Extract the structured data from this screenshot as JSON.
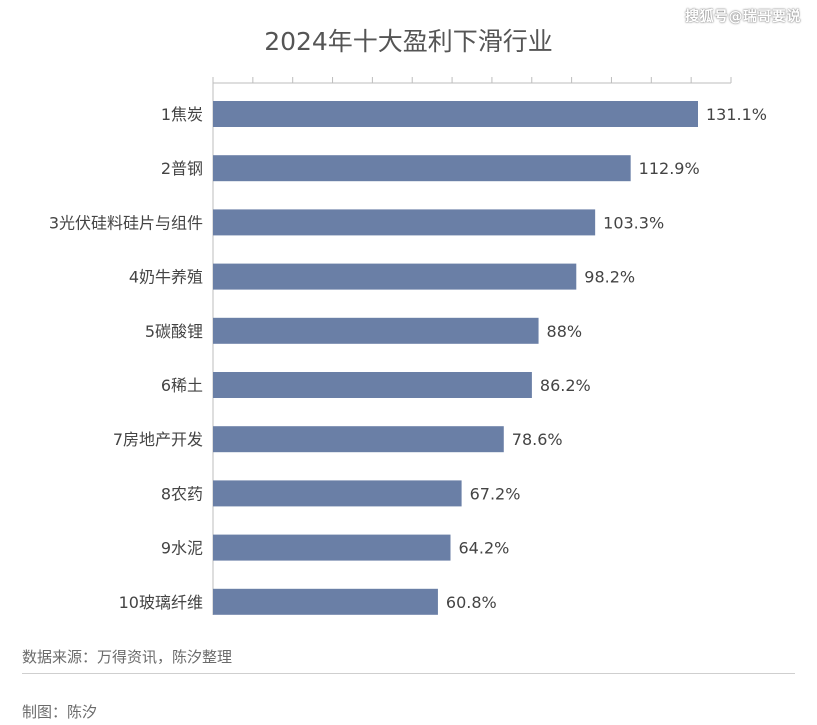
{
  "watermark": "搜狐号@瑞哥要说",
  "chart_data": {
    "type": "bar",
    "orientation": "horizontal",
    "title": "2024年十大盈利下滑行业",
    "categories": [
      "1焦炭",
      "2普钢",
      "3光伏硅料硅片与组件",
      "4奶牛养殖",
      "5碳酸锂",
      "6稀土",
      "7房地产开发",
      "8农药",
      "9水泥",
      "10玻璃纤维"
    ],
    "values": [
      131.1,
      112.9,
      103.3,
      98.2,
      88,
      86.2,
      78.6,
      67.2,
      64.2,
      60.8
    ],
    "labels": [
      "131.1%",
      "112.9%",
      "103.3%",
      "98.2%",
      "88%",
      "86.2%",
      "78.6%",
      "67.2%",
      "64.2%",
      "60.8%"
    ],
    "xlim": [
      0,
      140
    ],
    "bar_color": "#6a7fa6",
    "grid": false,
    "legend": "none"
  },
  "source": "数据来源：万得资讯，陈汐整理",
  "credit": "制图：陈汐"
}
